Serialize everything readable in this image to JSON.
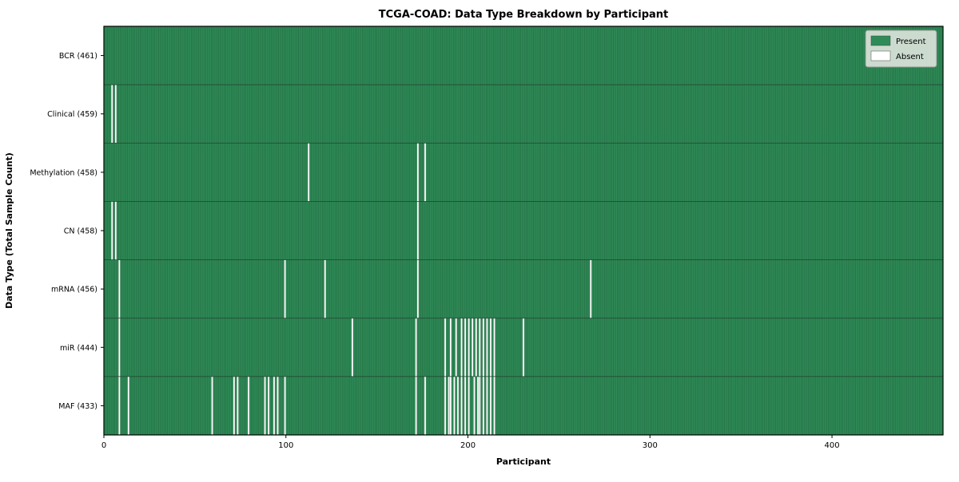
{
  "title": "TCGA-COAD: Data Type Breakdown by Participant",
  "colors": {
    "present": "#2e8b57",
    "absent": "#ffffff",
    "cell_edge": "#1c4a2e",
    "row_separator": "#1d3b29",
    "plot_border": "#000000",
    "legend_bg": "#dee4dd",
    "legend_border": "#8f978f"
  },
  "chart_data": {
    "type": "heatmap",
    "title": "TCGA-COAD: Data Type Breakdown by Participant",
    "xlabel": "Participant",
    "ylabel": "Data Type (Total Sample Count)",
    "n_participants": 461,
    "x_ticks": [
      0,
      100,
      200,
      300,
      400
    ],
    "legend": [
      {
        "label": "Present",
        "color": "#2e8b57"
      },
      {
        "label": "Absent",
        "color": "#ffffff"
      }
    ],
    "legend_position": "upper right",
    "grid": false,
    "rows": [
      {
        "label": "BCR (461)",
        "data_type": "BCR",
        "present_count": 461,
        "absent_participants": []
      },
      {
        "label": "Clinical (459)",
        "data_type": "Clinical",
        "present_count": 459,
        "absent_participants": [
          4,
          6
        ]
      },
      {
        "label": "Methylation (458)",
        "data_type": "Methylation",
        "present_count": 458,
        "absent_participants": [
          112,
          172,
          176
        ]
      },
      {
        "label": "CN (458)",
        "data_type": "CN",
        "present_count": 458,
        "absent_participants": [
          4,
          6,
          172
        ]
      },
      {
        "label": "mRNA (456)",
        "data_type": "mRNA",
        "present_count": 456,
        "absent_participants": [
          8,
          99,
          121,
          172,
          267
        ]
      },
      {
        "label": "miR (444)",
        "data_type": "miR",
        "present_count": 444,
        "absent_participants": [
          8,
          136,
          171,
          187,
          190,
          193,
          196,
          198,
          200,
          202,
          204,
          206,
          208,
          210,
          212,
          214,
          230
        ]
      },
      {
        "label": "MAF (433)",
        "data_type": "MAF",
        "present_count": 433,
        "absent_participants": [
          8,
          13,
          59,
          71,
          73,
          79,
          88,
          90,
          93,
          95,
          99,
          171,
          176,
          187,
          189,
          190,
          192,
          194,
          196,
          198,
          200,
          203,
          205,
          206,
          208,
          210,
          212,
          214
        ]
      }
    ]
  }
}
